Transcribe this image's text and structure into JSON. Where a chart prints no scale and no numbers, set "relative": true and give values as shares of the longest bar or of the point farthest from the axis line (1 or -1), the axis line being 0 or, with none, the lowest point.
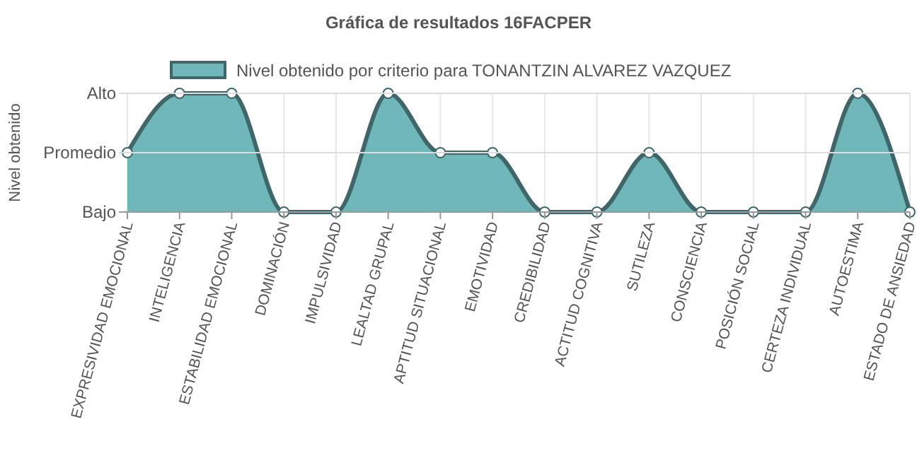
{
  "chart_data": {
    "type": "area",
    "title": "Gráfica de resultados 16FACPER",
    "ylabel": "Nivel obtenido",
    "categories": [
      "EXPRESIVIDAD EMOCIONAL",
      "INTELIGENCIA",
      "ESTABILIDAD EMOCIONAL",
      "DOMINACIÓN",
      "IMPULSIVIDAD",
      "LEALTAD GRUPAL",
      "APTITUD SITUACIONAL",
      "EMOTIVIDAD",
      "CREDIBILIDAD",
      "ACTITUD COGNITIVA",
      "SUTILEZA",
      "CONSCIENCIA",
      "POSICIÓN SOCIAL",
      "CERTEZA INDIVIDUAL",
      "AUTOESTIMA",
      "ESTADO DE ANSIEDAD"
    ],
    "series": [
      {
        "name": "Nivel obtenido por criterio para TONANTZIN ALVAREZ VAZQUEZ",
        "color": "#6fb7b9",
        "values": [
          0.5,
          1,
          1,
          0,
          0,
          1,
          0.5,
          0.5,
          0,
          0,
          0.5,
          0,
          0,
          0,
          1,
          0
        ]
      }
    ],
    "relative": true,
    "annotations": [
      "Bajo"
    ],
    "ref_lines": [
      {
        "axis": "y",
        "value": 0.5,
        "label": "Promedio",
        "color": "#dddddd"
      },
      {
        "axis": "y",
        "value": 1,
        "label": "Alto",
        "color": "#dddddd"
      }
    ],
    "grid": true,
    "legend": "top",
    "marker": "circle"
  }
}
